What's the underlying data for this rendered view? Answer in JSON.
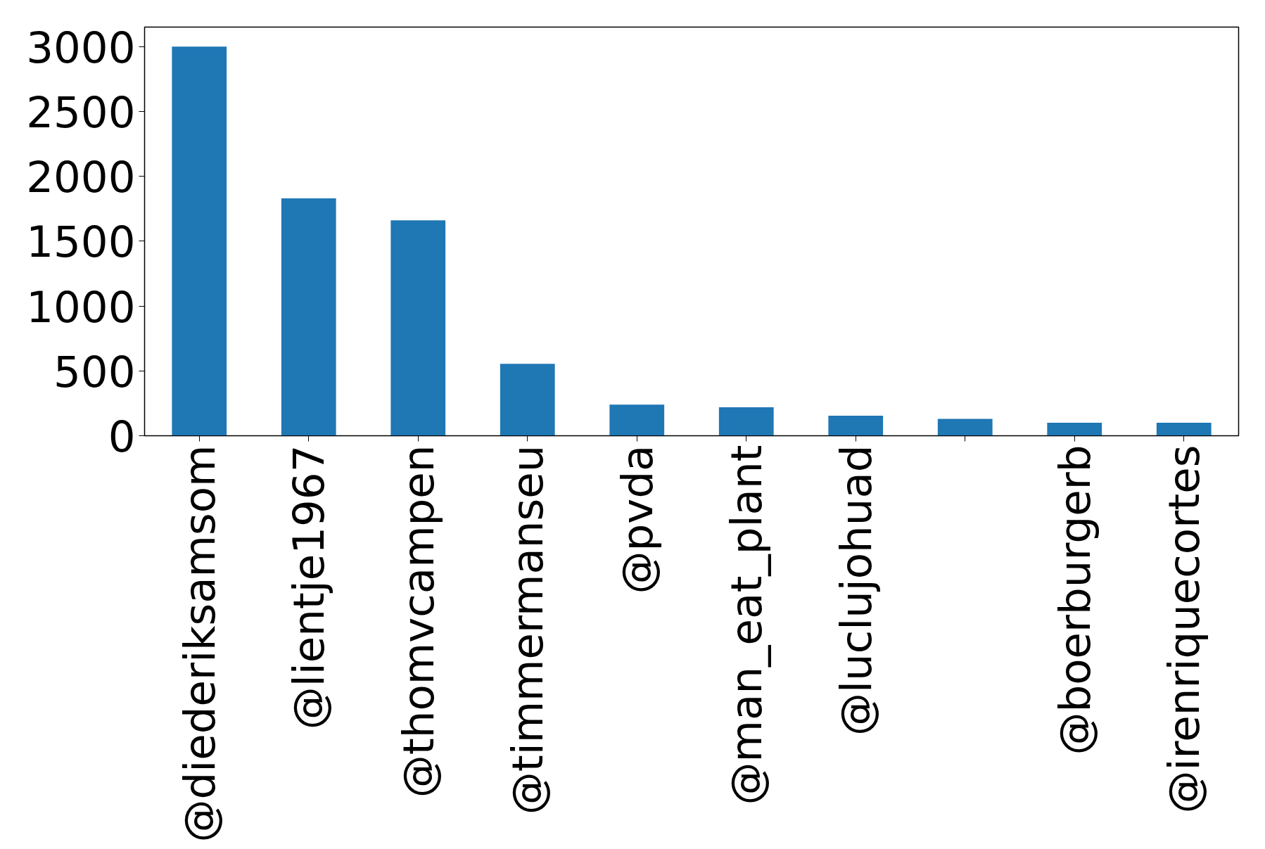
{
  "chart_data": {
    "type": "bar",
    "categories": [
      "@diederiksamsom",
      "@lientje1967",
      "@thomvcampen",
      "@timmermanseu",
      "@pvda",
      "@man_eat_plant",
      "@luclujohuad",
      null,
      "@boerburgerb",
      "@irenriquecortes"
    ],
    "values": [
      3000,
      1830,
      1660,
      555,
      240,
      220,
      155,
      130,
      100,
      100
    ],
    "color": "#1f77b4",
    "ylim": [
      0,
      3150
    ],
    "yticks": [
      0,
      500,
      1000,
      1500,
      2000,
      2500,
      3000
    ],
    "grid": false
  }
}
